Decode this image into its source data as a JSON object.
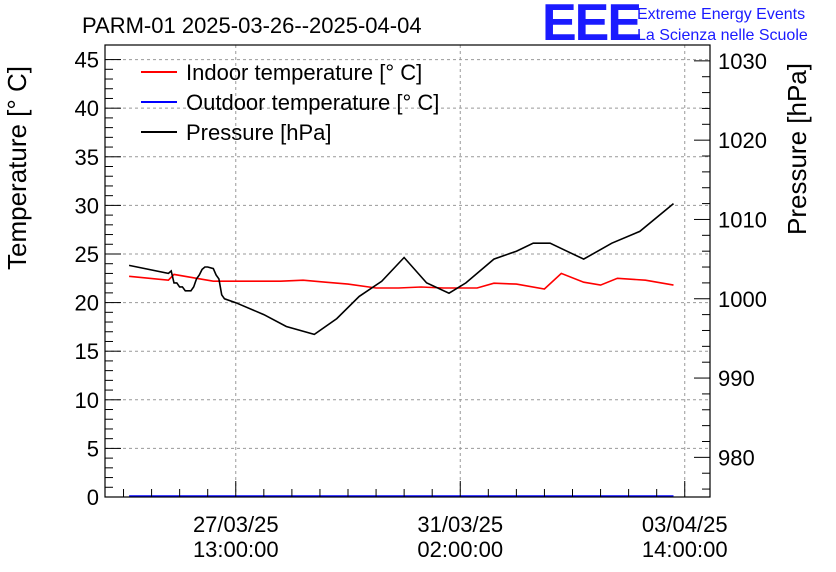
{
  "chart_data": {
    "type": "line",
    "title": "PARM-01 2025-03-26--2025-04-04",
    "ylabel_left": "Temperature [° C]",
    "ylabel_right": "Pressure [hPa]",
    "ylim_left": [
      0,
      46.5
    ],
    "ylim_right": [
      975,
      1032
    ],
    "grid": true,
    "legend_position": "top-left",
    "x_ticks": [
      {
        "t": 1.0,
        "date": "27/03/25",
        "time": "13:00:00"
      },
      {
        "t": 5.0,
        "date": "31/03/25",
        "time": "02:00:00"
      },
      {
        "t": 9.0,
        "date": "03/04/25",
        "time": "14:00:00"
      }
    ],
    "xlim": [
      -1.33,
      9.45
    ],
    "y_ticks_left": [
      0,
      5,
      10,
      15,
      20,
      25,
      30,
      35,
      40,
      45
    ],
    "y_ticks_right": [
      980,
      990,
      1000,
      1010,
      1020,
      1030
    ],
    "series": [
      {
        "name": "Indoor temperature [° C]",
        "color": "#ff0000",
        "axis": "left",
        "x": [
          -0.9,
          -0.2,
          -0.1,
          0.3,
          0.6,
          1.4,
          1.8,
          2.2,
          2.6,
          3.0,
          3.5,
          3.9,
          4.3,
          4.7,
          5.3,
          5.6,
          6.0,
          6.5,
          6.8,
          7.2,
          7.5,
          7.8,
          8.3,
          8.8
        ],
        "y": [
          22.7,
          22.3,
          22.9,
          22.5,
          22.2,
          22.2,
          22.2,
          22.3,
          22.1,
          21.9,
          21.5,
          21.5,
          21.6,
          21.5,
          21.5,
          22.0,
          21.9,
          21.4,
          23.0,
          22.1,
          21.8,
          22.5,
          22.3,
          21.8
        ]
      },
      {
        "name": "Outdoor temperature [° C]",
        "color": "#0000ff",
        "axis": "left",
        "x": [
          -0.9,
          8.8
        ],
        "y": [
          0.1,
          0.1
        ]
      },
      {
        "name": "Pressure [hPa]",
        "color": "#000000",
        "axis": "right",
        "x": [
          -0.9,
          -0.2,
          -0.15,
          -0.1,
          -0.05,
          0.0,
          0.05,
          0.1,
          0.15,
          0.2,
          0.25,
          0.3,
          0.35,
          0.4,
          0.45,
          0.5,
          0.6,
          0.65,
          0.7,
          0.75,
          0.8,
          1.0,
          1.5,
          1.9,
          2.4,
          2.8,
          3.2,
          3.6,
          4.0,
          4.4,
          4.8,
          5.1,
          5.6,
          6.0,
          6.3,
          6.6,
          6.9,
          7.2,
          7.7,
          8.2,
          8.8
        ],
        "y": [
          1004.2,
          1003.2,
          1003.5,
          1002.0,
          1002.0,
          1001.5,
          1001.5,
          1001.0,
          1001.0,
          1001.0,
          1001.5,
          1002.5,
          1003.0,
          1003.7,
          1004.0,
          1004.0,
          1003.8,
          1003.0,
          1002.5,
          1000.5,
          1000.0,
          999.5,
          998.0,
          996.5,
          995.5,
          997.5,
          1000.3,
          1002.2,
          1005.2,
          1002.0,
          1000.7,
          1002.0,
          1005.0,
          1006.0,
          1007.0,
          1007.0,
          1006.0,
          1005.0,
          1007.0,
          1008.5,
          1012.0
        ]
      }
    ]
  },
  "logo": {
    "text": "EEE",
    "line1": "Extreme Energy Events",
    "line2": "La Scienza nelle Scuole",
    "color": "#1a1aff"
  }
}
